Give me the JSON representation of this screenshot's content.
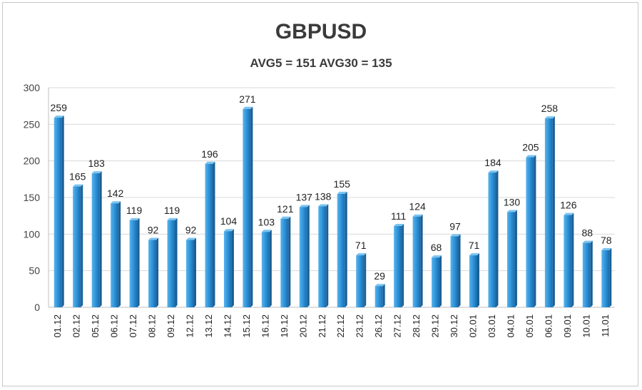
{
  "chart_data": {
    "type": "bar",
    "title": "GBPUSD",
    "subtitle": "AVG5 = 151 AVG30 = 135",
    "xlabel": "",
    "ylabel": "",
    "ylim": [
      0,
      300
    ],
    "yticks": [
      0,
      50,
      100,
      150,
      200,
      250,
      300
    ],
    "grid": true,
    "legend": "none",
    "bar_color": "#2a8fd6",
    "bar_dark_color": "#1a5f96",
    "categories": [
      "01.12",
      "02.12",
      "05.12",
      "06.12",
      "07.12",
      "08.12",
      "09.12",
      "12.12",
      "13.12",
      "14.12",
      "15.12",
      "16.12",
      "19.12",
      "20.12",
      "21.12",
      "22.12",
      "23.12",
      "26.12",
      "27.12",
      "28.12",
      "29.12",
      "30.12",
      "02.01",
      "03.01",
      "04.01",
      "05.01",
      "06.01",
      "09.01",
      "10.01",
      "11.01"
    ],
    "values": [
      259,
      165,
      183,
      142,
      119,
      92,
      119,
      92,
      196,
      104,
      271,
      103,
      121,
      137,
      138,
      155,
      71,
      29,
      111,
      124,
      68,
      97,
      71,
      184,
      130,
      205,
      258,
      126,
      88,
      78
    ]
  }
}
